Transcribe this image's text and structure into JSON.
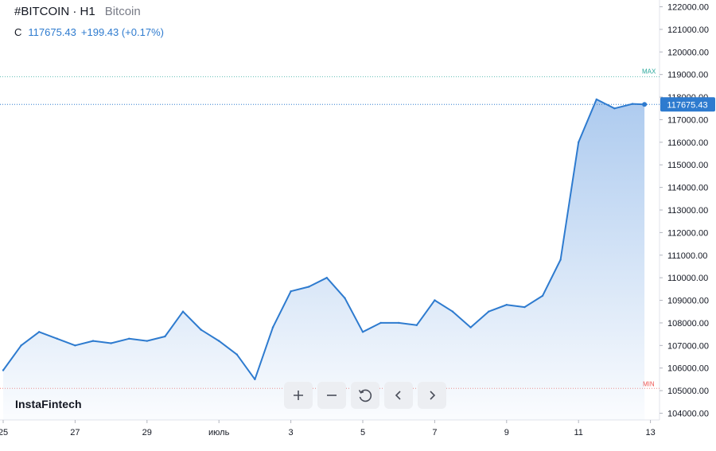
{
  "legend": {
    "symbol": "#BITCOIN · H1",
    "description": "Bitcoin",
    "close_label": "C",
    "close_value": "117675.43",
    "change": "+199.43 (+0.17%)"
  },
  "logo_text": "InstaFintech",
  "toolbar": [
    {
      "name": "zoom-in-button",
      "icon": "plus-icon"
    },
    {
      "name": "zoom-out-button",
      "icon": "minus-icon"
    },
    {
      "name": "reset-chart-button",
      "icon": "reset-icon"
    },
    {
      "name": "scroll-left-button",
      "icon": "chevron-left-icon"
    },
    {
      "name": "scroll-right-button",
      "icon": "chevron-right-icon"
    }
  ],
  "colors": {
    "line": "#2e7bcf",
    "fill_top": "#a9c8ee",
    "max_line": "#26a69a",
    "min_line": "#ef5350",
    "price_tag": "#2e7bcf",
    "axis_text": "#131722"
  },
  "chart_data": {
    "type": "area",
    "series": [
      {
        "x": [
          "2025-06-25T00:00",
          "2025-06-25T12:00",
          "2025-06-26T00:00",
          "2025-06-26T12:00",
          "2025-06-27T00:00",
          "2025-06-27T12:00",
          "2025-06-28T00:00",
          "2025-06-28T12:00",
          "2025-06-29T00:00",
          "2025-06-29T12:00",
          "2025-06-30T00:00",
          "2025-06-30T12:00",
          "2025-07-01T00:00",
          "2025-07-01T12:00",
          "2025-07-02T00:00",
          "2025-07-02T12:00",
          "2025-07-03T00:00",
          "2025-07-03T12:00",
          "2025-07-04T00:00",
          "2025-07-04T12:00",
          "2025-07-05T00:00",
          "2025-07-05T12:00",
          "2025-07-06T00:00",
          "2025-07-06T12:00",
          "2025-07-07T00:00",
          "2025-07-07T12:00",
          "2025-07-08T00:00",
          "2025-07-08T12:00",
          "2025-07-09T00:00",
          "2025-07-09T12:00",
          "2025-07-10T00:00",
          "2025-07-10T12:00",
          "2025-07-11T00:00",
          "2025-07-11T12:00",
          "2025-07-12T00:00",
          "2025-07-12T12:00",
          "2025-07-12T20:00"
        ],
        "y": [
          105900,
          107000,
          107600,
          107300,
          107000,
          107200,
          107100,
          107300,
          107200,
          107400,
          108500,
          107700,
          107200,
          106600,
          105500,
          107800,
          109400,
          109600,
          110000,
          109100,
          107600,
          108000,
          108000,
          107900,
          109000,
          108500,
          107800,
          108500,
          108800,
          108700,
          109200,
          110800,
          116000,
          117900,
          117500,
          117700,
          117675.43
        ]
      }
    ],
    "x_ticks": [
      "25",
      "27",
      "29",
      "июль",
      "3",
      "5",
      "7",
      "9",
      "11",
      "13"
    ],
    "y_ticks": [
      104000,
      105000,
      106000,
      107000,
      108000,
      109000,
      110000,
      111000,
      112000,
      113000,
      114000,
      115000,
      116000,
      117000,
      118000,
      119000,
      120000,
      121000,
      122000
    ],
    "y_tick_labels": [
      "104000.00",
      "105000.00",
      "106000.00",
      "107000.00",
      "108000.00",
      "109000.00",
      "110000.00",
      "111000.00",
      "112000.00",
      "113000.00",
      "114000.00",
      "115000.00",
      "116000.00",
      "117000.00",
      "118000.00",
      "119000.00",
      "120000.00",
      "121000.00",
      "122000.00"
    ],
    "ylim": [
      103700,
      122300
    ],
    "max_label": "MAX",
    "min_label": "MIN",
    "max_value": 118900,
    "min_value": 105100,
    "last_price": 117675.43,
    "last_price_label": "117675.43",
    "grid": false,
    "legend": "top-left"
  }
}
